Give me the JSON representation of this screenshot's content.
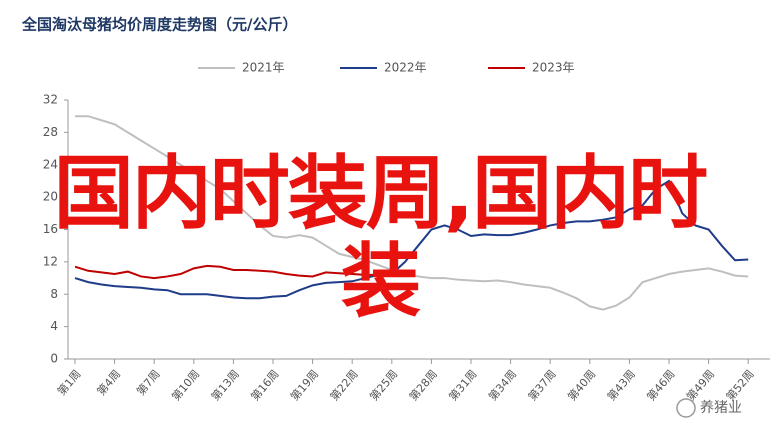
{
  "chart_data": {
    "type": "line",
    "title": "全国淘汰母猪均价周度走势图（元/公斤）",
    "categories": [
      "第1周",
      null,
      null,
      "第4周",
      null,
      null,
      "第7周",
      null,
      null,
      "第10周",
      null,
      null,
      "第13周",
      null,
      null,
      "第16周",
      null,
      null,
      "第19周",
      null,
      null,
      "第22周",
      null,
      null,
      "第25周",
      null,
      null,
      "第28周",
      null,
      null,
      "第31周",
      null,
      null,
      "第34周",
      null,
      null,
      "第37周",
      null,
      null,
      "第40周",
      null,
      null,
      "第43周",
      null,
      null,
      "第46周",
      null,
      null,
      "第49周",
      null,
      null,
      "第52周"
    ],
    "series": [
      {
        "name": "2021年",
        "color": "#bfbfbf",
        "values": [
          30,
          30,
          29.5,
          29,
          28,
          27,
          26,
          25,
          24,
          23,
          22,
          21,
          19.5,
          18,
          16.5,
          15.2,
          15,
          15.3,
          15,
          14,
          13,
          12.6,
          12.2,
          11.6,
          11,
          10.6,
          10.2,
          10,
          10,
          9.8,
          9.7,
          9.6,
          9.7,
          9.5,
          9.2,
          9,
          8.8,
          8.2,
          7.5,
          6.5,
          6.1,
          6.6,
          7.6,
          9.5,
          10,
          10.5,
          10.8,
          11,
          11.2,
          10.8,
          10.3,
          10.2
        ]
      },
      {
        "name": "2022年",
        "color": "#1f3c88",
        "values": [
          10,
          9.5,
          9.2,
          9,
          8.9,
          8.8,
          8.6,
          8.5,
          8,
          8,
          8,
          7.8,
          7.6,
          7.5,
          7.5,
          7.7,
          7.8,
          8.5,
          9.1,
          9.4,
          9.5,
          9.6,
          10,
          10.4,
          10.5,
          12,
          14,
          16,
          16.5,
          16,
          15.2,
          15.4,
          15.3,
          15.3,
          15.6,
          16,
          16.5,
          16.8,
          17,
          17,
          17.2,
          17.5,
          18.5,
          19,
          21,
          22,
          18,
          16.5,
          16,
          14,
          12.2,
          12.3
        ]
      },
      {
        "name": "2023年",
        "color": "#c00000",
        "values": [
          11.4,
          10.9,
          10.7,
          10.5,
          10.8,
          10.2,
          10,
          10.2,
          10.5,
          11.2,
          11.5,
          11.4,
          11,
          11,
          10.9,
          10.8,
          10.5,
          10.3,
          10.2,
          10.7,
          10.6,
          10.5,
          10.4,
          10.4,
          10.4,
          10.5,
          null,
          null,
          null,
          null,
          null,
          null,
          null,
          null,
          null,
          null,
          null,
          null,
          null,
          null,
          null,
          null,
          null,
          null,
          null,
          null,
          null,
          null,
          null,
          null,
          null,
          null
        ]
      }
    ],
    "ylim": [
      0,
      32
    ],
    "yticks": [
      0,
      4,
      8,
      12,
      16,
      20,
      24,
      28,
      32
    ],
    "grid": false
  },
  "overlay_text": "国内时装周,国内时装",
  "watermark": "养猪业"
}
